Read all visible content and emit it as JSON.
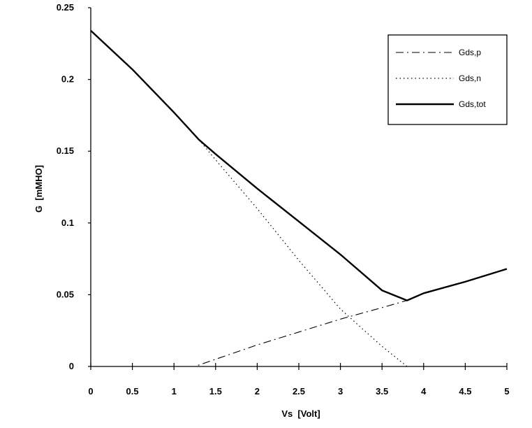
{
  "chart_data": {
    "type": "line",
    "title": "",
    "xlabel": "Vs  [Volt]",
    "ylabel": "G  [mMHO]",
    "xlim": [
      0,
      5
    ],
    "ylim": [
      0,
      0.25
    ],
    "x_ticks": [
      "0",
      "0.5",
      "1",
      "1.5",
      "2",
      "2.5",
      "3",
      "3.5",
      "4",
      "4.5",
      "5"
    ],
    "y_ticks": [
      "0",
      "0.05",
      "0.1",
      "0.15",
      "0.2",
      "0.25"
    ],
    "legend_position": "top-right",
    "grid": false,
    "series": [
      {
        "name": "Gds,p",
        "style": "dashdot",
        "x": [
          0,
          1.0,
          1.25,
          1.5,
          2.0,
          2.5,
          3.0,
          3.5,
          3.8,
          4.0,
          4.5,
          5.0
        ],
        "y": [
          0,
          0,
          0,
          0.005,
          0.015,
          0.024,
          0.033,
          0.041,
          0.046,
          0.051,
          0.059,
          0.068
        ]
      },
      {
        "name": "Gds,n",
        "style": "dotted",
        "x": [
          0,
          0.5,
          1.0,
          1.3,
          1.5,
          2.0,
          2.5,
          3.0,
          3.5,
          3.8
        ],
        "y": [
          0.234,
          0.207,
          0.177,
          0.158,
          0.144,
          0.11,
          0.074,
          0.04,
          0.014,
          0
        ]
      },
      {
        "name": "Gds,tot",
        "style": "solid",
        "x": [
          0,
          0.5,
          1.0,
          1.3,
          1.5,
          2.0,
          2.5,
          3.0,
          3.5,
          3.8,
          4.0,
          4.5,
          5.0
        ],
        "y": [
          0.234,
          0.207,
          0.177,
          0.158,
          0.148,
          0.124,
          0.101,
          0.078,
          0.053,
          0.046,
          0.051,
          0.059,
          0.068
        ]
      }
    ]
  }
}
